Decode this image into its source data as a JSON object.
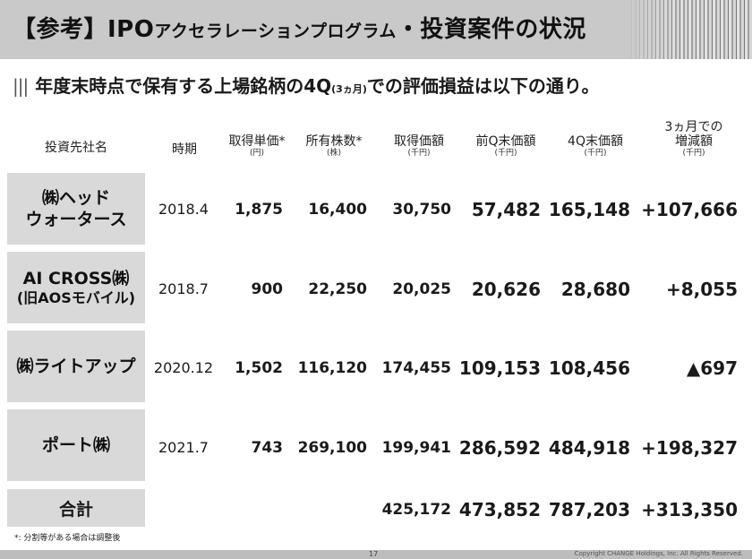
{
  "header": {
    "title_prefix": "【参考】IPO",
    "title_small": "アクセラレーションプログラム",
    "title_suffix": "・投資案件の状況"
  },
  "subtitle": {
    "bars": "|||",
    "text_a": "年度末時点で保有する上場銘柄の4Q",
    "text_small": "(3ヵ月)",
    "text_b": "での評価損益は以下の通り。"
  },
  "columns": [
    {
      "label": "投資先社名",
      "unit": ""
    },
    {
      "label": "時期",
      "unit": ""
    },
    {
      "label": "取得単価*",
      "unit": "(円)"
    },
    {
      "label": "所有株数*",
      "unit": "(株)"
    },
    {
      "label": "取得価額",
      "unit": "(千円)"
    },
    {
      "label": "前Q末価額",
      "unit": "(千円)"
    },
    {
      "label": "4Q末価額",
      "unit": "(千円)"
    },
    {
      "label1": "3ヵ月での",
      "label2": "増減額",
      "unit": "(千円)"
    }
  ],
  "rows": [
    {
      "name1": "㈱ヘッド",
      "name2": "ウォータース",
      "period": "2018.4",
      "unit_price": "1,875",
      "shares": "16,400",
      "acq_value": "30,750",
      "prev_q": "57,482",
      "q4": "165,148",
      "change": "+107,666"
    },
    {
      "name1": "AI CROSS㈱",
      "name2": "(旧AOSモバイル)",
      "period": "2018.7",
      "unit_price": "900",
      "shares": "22,250",
      "acq_value": "20,025",
      "prev_q": "20,626",
      "q4": "28,680",
      "change": "+8,055"
    },
    {
      "name1": "㈱ライトアップ",
      "name2": "",
      "period": "2020.12",
      "unit_price": "1,502",
      "shares": "116,120",
      "acq_value": "174,455",
      "prev_q": "109,153",
      "q4": "108,456",
      "change": "▲697"
    },
    {
      "name1": "ポート㈱",
      "name2": "",
      "period": "2021.7",
      "unit_price": "743",
      "shares": "269,100",
      "acq_value": "199,941",
      "prev_q": "286,592",
      "q4": "484,918",
      "change": "+198,327"
    }
  ],
  "total": {
    "label": "合計",
    "acq_value": "425,172",
    "prev_q": "473,852",
    "q4": "787,203",
    "change": "+313,350"
  },
  "note": "*: 分割等がある場合は調整後",
  "page_number": "17",
  "copyright": "Copyright CHANGE Holdings, Inc. All Rights Reserved."
}
